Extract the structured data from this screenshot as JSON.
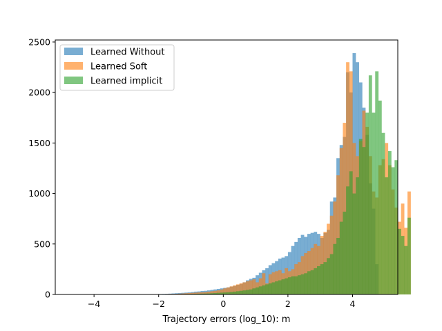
{
  "chart_data": {
    "type": "histogram",
    "title": "",
    "xlabel": "Trajectory errors (log_10): m",
    "ylabel": "",
    "xlim": [
      -5.2,
      5.4
    ],
    "ylim": [
      0,
      2520
    ],
    "bin_start": -4.9,
    "bin_width": 0.1,
    "x_ticks": [
      -4,
      -2,
      0,
      2,
      4
    ],
    "x_tick_labels": [
      "−4",
      "−2",
      "0",
      "2",
      "4"
    ],
    "y_ticks": [
      0,
      500,
      1000,
      1500,
      2000,
      2500
    ],
    "y_tick_labels": [
      "0",
      "500",
      "1000",
      "1500",
      "2000",
      "2500"
    ],
    "grid": false,
    "legend_position": "upper-left",
    "alpha": 0.6,
    "series": [
      {
        "name": "Learned Without",
        "color": "#1f77b4",
        "counts": [
          0,
          0,
          0,
          0,
          0,
          0,
          0,
          0,
          0,
          0,
          0,
          0,
          0,
          0,
          0,
          0,
          0,
          0,
          0,
          1,
          0,
          0,
          0,
          1,
          2,
          2,
          2,
          3,
          3,
          4,
          5,
          6,
          8,
          10,
          12,
          14,
          16,
          18,
          20,
          24,
          28,
          30,
          34,
          36,
          40,
          45,
          50,
          55,
          60,
          65,
          70,
          78,
          85,
          95,
          105,
          120,
          140,
          155,
          165,
          190,
          215,
          240,
          260,
          290,
          310,
          330,
          355,
          365,
          380,
          420,
          480,
          520,
          560,
          590,
          570,
          600,
          610,
          620,
          600,
          560,
          610,
          640,
          920,
          960,
          1350,
          1480,
          1560,
          2200,
          2000,
          2390,
          2300,
          2100,
          1850,
          1580,
          1100,
          850,
          300,
          0,
          0,
          0,
          0,
          0,
          0,
          0,
          0,
          0,
          0,
          0
        ]
      },
      {
        "name": "Learned Soft",
        "color": "#ff7f0e",
        "counts": [
          0,
          0,
          0,
          0,
          0,
          0,
          0,
          0,
          0,
          0,
          0,
          0,
          0,
          0,
          0,
          0,
          0,
          0,
          0,
          0,
          0,
          0,
          0,
          0,
          0,
          1,
          1,
          1,
          2,
          2,
          3,
          4,
          5,
          5,
          6,
          8,
          10,
          12,
          14,
          16,
          18,
          20,
          22,
          24,
          28,
          32,
          36,
          40,
          50,
          60,
          70,
          80,
          90,
          100,
          110,
          120,
          130,
          140,
          150,
          120,
          160,
          210,
          110,
          200,
          220,
          230,
          240,
          210,
          260,
          230,
          250,
          300,
          320,
          380,
          410,
          430,
          460,
          500,
          480,
          580,
          620,
          700,
          780,
          920,
          1180,
          1450,
          1700,
          2300,
          2210,
          1500,
          1370,
          1520,
          1820,
          1660,
          1370,
          1020,
          960,
          1280,
          1340,
          1500,
          1280,
          1040,
          860,
          720,
          900,
          660,
          1020,
          0
        ]
      },
      {
        "name": "Learned implicit",
        "color": "#2ca02c",
        "counts": [
          0,
          0,
          0,
          0,
          0,
          0,
          0,
          0,
          0,
          0,
          0,
          0,
          0,
          0,
          0,
          0,
          0,
          0,
          0,
          0,
          0,
          0,
          0,
          0,
          0,
          0,
          0,
          0,
          0,
          1,
          1,
          1,
          2,
          2,
          2,
          3,
          3,
          4,
          4,
          5,
          6,
          7,
          8,
          9,
          10,
          12,
          14,
          16,
          18,
          20,
          22,
          25,
          28,
          32,
          36,
          40,
          45,
          50,
          60,
          70,
          80,
          90,
          100,
          110,
          120,
          130,
          140,
          150,
          160,
          170,
          180,
          180,
          190,
          200,
          210,
          230,
          240,
          260,
          280,
          300,
          320,
          360,
          400,
          500,
          560,
          720,
          820,
          1070,
          1220,
          1000,
          1160,
          1540,
          1460,
          1800,
          2170,
          1800,
          2210,
          1920,
          1600,
          1160,
          1420,
          1260,
          1330,
          650,
          580,
          480,
          760,
          0
        ]
      }
    ]
  }
}
